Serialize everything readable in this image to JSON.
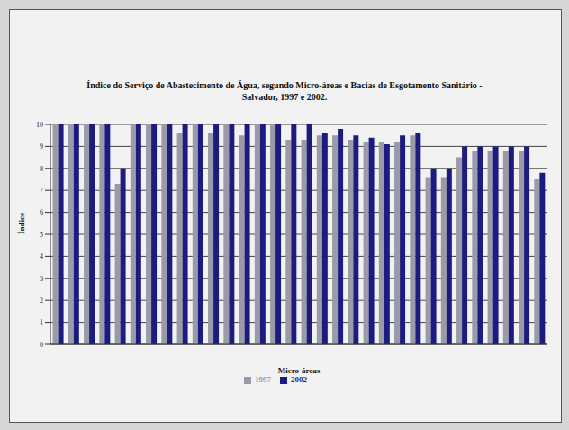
{
  "chart_data": {
    "type": "bar",
    "title": "Índice do Serviço de Abastecimento de Água, segundo Micro-áreas e Bacias de Esgotamento Sanitário - Salvador, 1997 e 2002.",
    "x_label": "Micro-áreas",
    "y_label": "Índice",
    "categories": [
      null,
      null,
      null,
      null,
      null,
      null,
      null,
      null,
      null,
      null,
      null,
      null,
      null,
      null,
      null,
      null,
      null,
      null,
      null,
      null,
      null,
      null,
      null,
      null,
      null,
      null,
      null,
      null,
      null,
      null,
      null,
      null
    ],
    "series": [
      {
        "name": "1997",
        "color": "#9a9aa8",
        "values": [
          10,
          10,
          10,
          10,
          7.3,
          10,
          10,
          10,
          9.6,
          10,
          9.6,
          10,
          9.5,
          10,
          10,
          9.3,
          9.3,
          9.5,
          9.5,
          9.3,
          9.2,
          9.2,
          9.2,
          9.5,
          7.6,
          7.6,
          8.5,
          8.8,
          8.8,
          8.8,
          8.8,
          7.5
        ]
      },
      {
        "name": "2002",
        "color": "#1c1c80",
        "values": [
          10,
          10,
          10,
          10,
          8,
          10,
          10,
          10,
          10,
          10,
          10,
          10,
          10,
          10,
          10,
          10,
          10,
          9.6,
          9.8,
          9.5,
          9.4,
          9.1,
          9.5,
          9.6,
          8,
          8,
          9,
          9,
          9,
          9,
          9,
          7.8
        ]
      }
    ],
    "ylim": [
      0,
      10
    ],
    "yticks": [
      0,
      1,
      2,
      3,
      4,
      5,
      6,
      7,
      8,
      9,
      10
    ],
    "grid": true,
    "legend": "bottom",
    "tick_labels": "y"
  }
}
